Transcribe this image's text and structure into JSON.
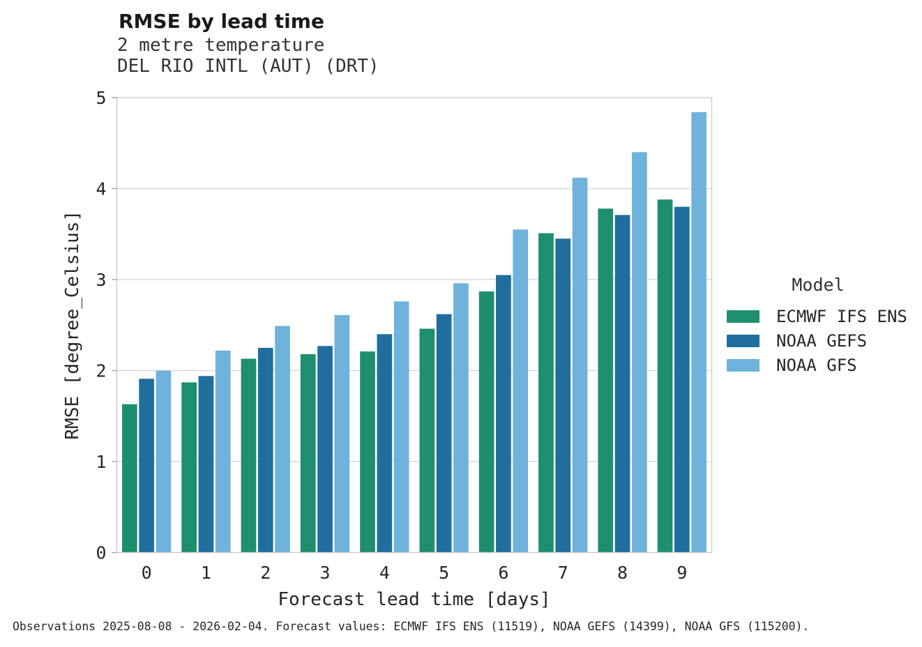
{
  "header": {
    "title": "RMSE by lead time",
    "subtitle1": "2 metre temperature",
    "subtitle2": "DEL RIO INTL (AUT) (DRT)"
  },
  "legend": {
    "title": "Model"
  },
  "footer": {
    "text": "Observations 2025-08-08 - 2026-02-04. Forecast values: ECMWF IFS ENS (11519), NOAA GEFS (14399), NOAA GFS (115200)."
  },
  "chart_data": {
    "type": "bar",
    "title": "RMSE by lead time",
    "subtitle": [
      "2 metre temperature",
      "DEL RIO INTL (AUT) (DRT)"
    ],
    "categories": [
      "0",
      "1",
      "2",
      "3",
      "4",
      "5",
      "6",
      "7",
      "8",
      "9"
    ],
    "series": [
      {
        "name": "ECMWF IFS ENS",
        "color": "#1E8F6E",
        "values": [
          1.63,
          1.87,
          2.13,
          2.18,
          2.21,
          2.46,
          2.87,
          3.51,
          3.78,
          3.88
        ]
      },
      {
        "name": "NOAA GEFS",
        "color": "#1F6E9E",
        "values": [
          1.91,
          1.94,
          2.25,
          2.27,
          2.4,
          2.62,
          3.05,
          3.45,
          3.71,
          3.8
        ]
      },
      {
        "name": "NOAA GFS",
        "color": "#6FB2DC",
        "values": [
          2.0,
          2.22,
          2.49,
          2.61,
          2.76,
          2.96,
          3.55,
          4.12,
          4.4,
          4.84
        ]
      }
    ],
    "xlabel": "Forecast lead time [days]",
    "ylabel": "RMSE [degree_Celsius]",
    "ylim": [
      0,
      5
    ],
    "yticks": [
      0,
      1,
      2,
      3,
      4,
      5
    ],
    "grid": true,
    "legend_title": "Model",
    "legend_position": "right",
    "footnote": "Observations 2025-08-08 - 2026-02-04. Forecast values: ECMWF IFS ENS (11519), NOAA GEFS (14399), NOAA GFS (115200)."
  },
  "style": {
    "grid_color": "#d9d9d9",
    "spine_color": "#cccccc",
    "tick_color": "#999999",
    "text_color": "#262626"
  }
}
